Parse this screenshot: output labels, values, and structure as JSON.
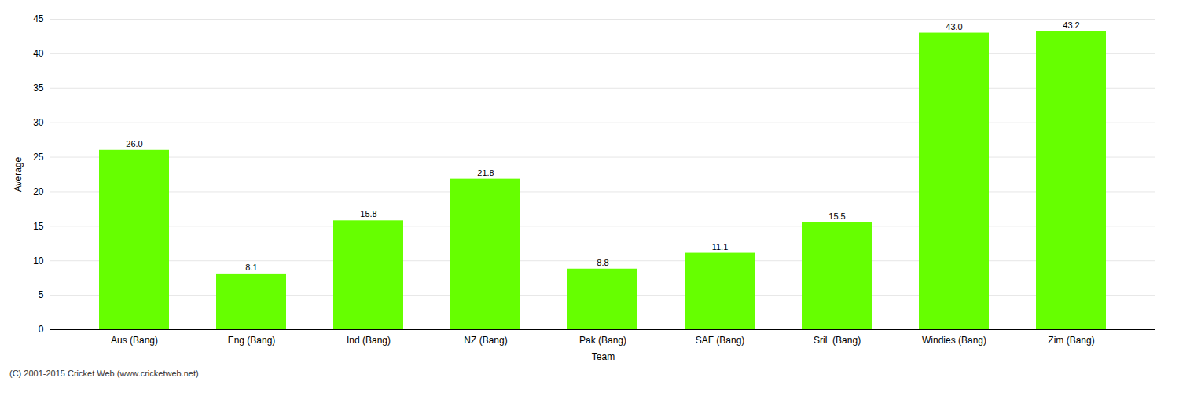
{
  "chart_data": {
    "type": "bar",
    "categories": [
      "Aus (Bang)",
      "Eng (Bang)",
      "Ind (Bang)",
      "NZ (Bang)",
      "Pak (Bang)",
      "SAF (Bang)",
      "SriL (Bang)",
      "Windies (Bang)",
      "Zim (Bang)"
    ],
    "values": [
      26.0,
      8.1,
      15.8,
      21.8,
      8.8,
      11.1,
      15.5,
      43.0,
      43.2
    ],
    "value_labels": [
      "26.0",
      "8.1",
      "15.8",
      "21.8",
      "8.8",
      "11.1",
      "15.5",
      "43.0",
      "43.2"
    ],
    "data_labels": true,
    "color": "#66ff00",
    "xlabel": "Team",
    "ylabel": "Average",
    "ylim": [
      0,
      45
    ],
    "yticks": [
      0,
      5,
      10,
      15,
      20,
      25,
      30,
      35,
      40,
      45
    ],
    "grid": true,
    "footnote": "(C) 2001-2015 Cricket Web (www.cricketweb.net)"
  }
}
